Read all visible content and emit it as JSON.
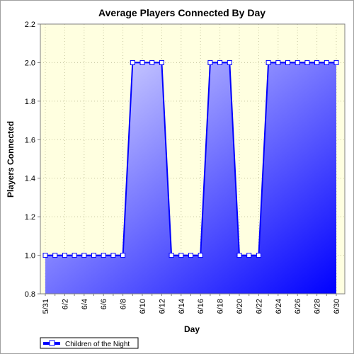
{
  "chart_data": {
    "type": "area",
    "title": "Average Players Connected By Day",
    "xlabel": "Day",
    "ylabel": "Players Connected",
    "ylim": [
      0.8,
      2.2
    ],
    "yticks": [
      0.8,
      1.0,
      1.2,
      1.4,
      1.6,
      1.8,
      2.0,
      2.2
    ],
    "grid": true,
    "legend_position": "bottom-left",
    "series": [
      {
        "name": "Children of the Night",
        "color": "#0000ff",
        "x": [
          "5/31",
          "6/1",
          "6/2",
          "6/3",
          "6/4",
          "6/5",
          "6/6",
          "6/7",
          "6/8",
          "6/9",
          "6/10",
          "6/11",
          "6/12",
          "6/13",
          "6/14",
          "6/15",
          "6/16",
          "6/17",
          "6/18",
          "6/19",
          "6/20",
          "6/21",
          "6/22",
          "6/23",
          "6/24",
          "6/25",
          "6/26",
          "6/27",
          "6/28",
          "6/29",
          "6/30"
        ],
        "values": [
          1,
          1,
          1,
          1,
          1,
          1,
          1,
          1,
          1,
          2,
          2,
          2,
          2,
          1,
          1,
          1,
          1,
          2,
          2,
          2,
          1,
          1,
          1,
          2,
          2,
          2,
          2,
          2,
          2,
          2,
          2
        ]
      }
    ],
    "xticks": [
      "5/31",
      "6/2",
      "6/4",
      "6/6",
      "6/8",
      "6/10",
      "6/12",
      "6/14",
      "6/16",
      "6/18",
      "6/20",
      "6/22",
      "6/24",
      "6/26",
      "6/28",
      "6/30"
    ]
  }
}
